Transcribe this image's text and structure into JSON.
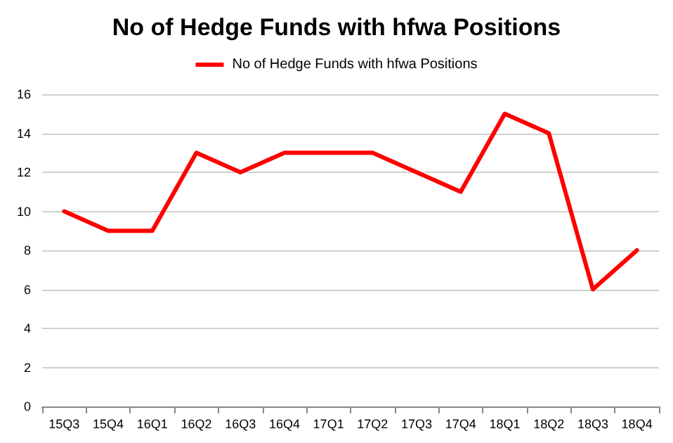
{
  "chart_data": {
    "type": "line",
    "title": "No of Hedge Funds with hfwa Positions",
    "categories": [
      "15Q3",
      "15Q4",
      "16Q1",
      "16Q2",
      "16Q3",
      "16Q4",
      "17Q1",
      "17Q2",
      "17Q3",
      "17Q4",
      "18Q1",
      "18Q2",
      "18Q3",
      "18Q4"
    ],
    "series": [
      {
        "name": "No of Hedge Funds with hfwa Positions",
        "color": "#ff0000",
        "values": [
          10,
          9,
          9,
          13,
          12,
          13,
          13,
          13,
          12,
          11,
          15,
          14,
          6,
          8
        ]
      }
    ],
    "ylim": [
      0,
      16
    ],
    "yticks": [
      0,
      2,
      4,
      6,
      8,
      10,
      12,
      14,
      16
    ],
    "grid": "y",
    "legend": "top",
    "marker": "none",
    "line_style": "solid"
  }
}
